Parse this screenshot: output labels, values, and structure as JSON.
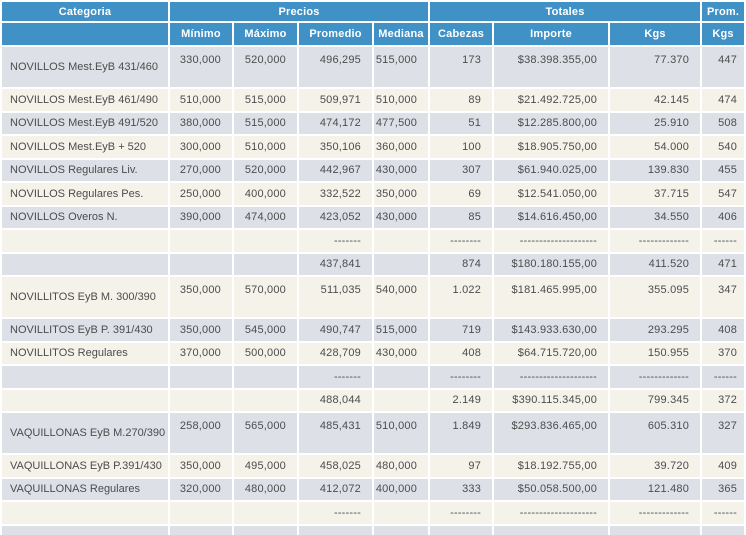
{
  "colors": {
    "header_blue": "#3f91c6",
    "header_text": "#ffffff",
    "row_gray": "#dde1e7",
    "row_cream": "#f5f2ea",
    "text": "#4c4c4c"
  },
  "table": {
    "header": {
      "category": "Categoria",
      "precios": "Precios",
      "totales": "Totales",
      "prom": "Prom.",
      "columns": [
        "Mínimo",
        "Máximo",
        "Promedio",
        "Mediana",
        "Cabezas",
        "Importe",
        "Kgs",
        "Kgs"
      ]
    },
    "rows": [
      {
        "variant": "gray",
        "tall": true,
        "category": "NOVILLOS Mest.EyB 431/460",
        "minimo": "330,000",
        "maximo": "520,000",
        "promedio": "496,295",
        "mediana": "515,000",
        "cabezas": "173",
        "importe": "$38.398.355,00",
        "kgs": "77.370",
        "prom_kgs": "447"
      },
      {
        "variant": "cream",
        "tall": false,
        "category": "NOVILLOS Mest.EyB 461/490",
        "minimo": "510,000",
        "maximo": "515,000",
        "promedio": "509,971",
        "mediana": "510,000",
        "cabezas": "89",
        "importe": "$21.492.725,00",
        "kgs": "42.145",
        "prom_kgs": "474"
      },
      {
        "variant": "gray",
        "tall": false,
        "category": "NOVILLOS Mest.EyB 491/520",
        "minimo": "380,000",
        "maximo": "515,000",
        "promedio": "474,172",
        "mediana": "477,500",
        "cabezas": "51",
        "importe": "$12.285.800,00",
        "kgs": "25.910",
        "prom_kgs": "508"
      },
      {
        "variant": "cream",
        "tall": false,
        "category": "NOVILLOS Mest.EyB + 520",
        "minimo": "300,000",
        "maximo": "510,000",
        "promedio": "350,106",
        "mediana": "360,000",
        "cabezas": "100",
        "importe": "$18.905.750,00",
        "kgs": "54.000",
        "prom_kgs": "540"
      },
      {
        "variant": "gray",
        "tall": false,
        "category": "NOVILLOS Regulares Liv.",
        "minimo": "270,000",
        "maximo": "520,000",
        "promedio": "442,967",
        "mediana": "430,000",
        "cabezas": "307",
        "importe": "$61.940.025,00",
        "kgs": "139.830",
        "prom_kgs": "455"
      },
      {
        "variant": "cream",
        "tall": false,
        "category": "NOVILLOS Regulares Pes.",
        "minimo": "250,000",
        "maximo": "400,000",
        "promedio": "332,522",
        "mediana": "350,000",
        "cabezas": "69",
        "importe": "$12.541.050,00",
        "kgs": "37.715",
        "prom_kgs": "547"
      },
      {
        "variant": "gray",
        "tall": false,
        "category": "NOVILLOS Overos N.",
        "minimo": "390,000",
        "maximo": "474,000",
        "promedio": "423,052",
        "mediana": "430,000",
        "cabezas": "85",
        "importe": "$14.616.450,00",
        "kgs": "34.550",
        "prom_kgs": "406"
      },
      {
        "variant": "cream",
        "tall": false,
        "category": "",
        "minimo": "",
        "maximo": "",
        "promedio": "-------",
        "mediana": "",
        "cabezas": "--------",
        "importe": "--------------------",
        "kgs": "-------------",
        "prom_kgs": "------"
      },
      {
        "variant": "gray",
        "tall": false,
        "category": "",
        "minimo": "",
        "maximo": "",
        "promedio": "437,841",
        "mediana": "",
        "cabezas": "874",
        "importe": "$180.180.155,00",
        "kgs": "411.520",
        "prom_kgs": "471"
      },
      {
        "variant": "cream",
        "tall": true,
        "category": "NOVILLITOS EyB M. 300/390",
        "minimo": "350,000",
        "maximo": "570,000",
        "promedio": "511,035",
        "mediana": "540,000",
        "cabezas": "1.022",
        "importe": "$181.465.995,00",
        "kgs": "355.095",
        "prom_kgs": "347"
      },
      {
        "variant": "gray",
        "tall": false,
        "category": "NOVILLITOS EyB P. 391/430",
        "minimo": "350,000",
        "maximo": "545,000",
        "promedio": "490,747",
        "mediana": "515,000",
        "cabezas": "719",
        "importe": "$143.933.630,00",
        "kgs": "293.295",
        "prom_kgs": "408"
      },
      {
        "variant": "cream",
        "tall": false,
        "category": "NOVILLITOS Regulares",
        "minimo": "370,000",
        "maximo": "500,000",
        "promedio": "428,709",
        "mediana": "430,000",
        "cabezas": "408",
        "importe": "$64.715.720,00",
        "kgs": "150.955",
        "prom_kgs": "370"
      },
      {
        "variant": "gray",
        "tall": false,
        "category": "",
        "minimo": "",
        "maximo": "",
        "promedio": "-------",
        "mediana": "",
        "cabezas": "--------",
        "importe": "--------------------",
        "kgs": "-------------",
        "prom_kgs": "------"
      },
      {
        "variant": "cream",
        "tall": false,
        "category": "",
        "minimo": "",
        "maximo": "",
        "promedio": "488,044",
        "mediana": "",
        "cabezas": "2.149",
        "importe": "$390.115.345,00",
        "kgs": "799.345",
        "prom_kgs": "372"
      },
      {
        "variant": "gray",
        "tall": true,
        "category": "VAQUILLONAS EyB M.270/390",
        "minimo": "258,000",
        "maximo": "565,000",
        "promedio": "485,431",
        "mediana": "510,000",
        "cabezas": "1.849",
        "importe": "$293.836.465,00",
        "kgs": "605.310",
        "prom_kgs": "327"
      },
      {
        "variant": "cream",
        "tall": false,
        "category": "VAQUILLONAS EyB P.391/430",
        "minimo": "350,000",
        "maximo": "495,000",
        "promedio": "458,025",
        "mediana": "480,000",
        "cabezas": "97",
        "importe": "$18.192.755,00",
        "kgs": "39.720",
        "prom_kgs": "409"
      },
      {
        "variant": "gray",
        "tall": false,
        "category": "VAQUILLONAS Regulares",
        "minimo": "320,000",
        "maximo": "480,000",
        "promedio": "412,072",
        "mediana": "400,000",
        "cabezas": "333",
        "importe": "$50.058.500,00",
        "kgs": "121.480",
        "prom_kgs": "365"
      },
      {
        "variant": "cream",
        "tall": false,
        "category": "",
        "minimo": "",
        "maximo": "",
        "promedio": "-------",
        "mediana": "",
        "cabezas": "--------",
        "importe": "--------------------",
        "kgs": "-------------",
        "prom_kgs": "------"
      },
      {
        "variant": "gray",
        "tall": false,
        "stub": true,
        "category": "",
        "minimo": "",
        "maximo": "",
        "promedio": "",
        "mediana": "",
        "cabezas": "",
        "importe": "",
        "kgs": "",
        "prom_kgs": ""
      }
    ]
  }
}
